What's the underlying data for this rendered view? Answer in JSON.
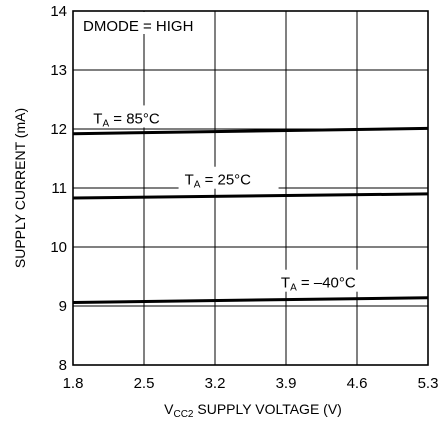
{
  "chart_data": {
    "type": "line",
    "title": "",
    "xlabel_main": "V",
    "xlabel_sub": "CC2",
    "xlabel_rest": " SUPPLY VOLTAGE (V)",
    "ylabel": "SUPPLY CURRENT (mA)",
    "xlim": [
      1.8,
      5.3
    ],
    "ylim": [
      8,
      14
    ],
    "x_ticks": [
      1.8,
      2.5,
      3.2,
      3.9,
      4.6,
      5.3
    ],
    "x_tick_labels": [
      "1.8",
      "2.5",
      "3.2",
      "3.9",
      "4.6",
      "5.3"
    ],
    "y_ticks": [
      8,
      9,
      10,
      11,
      12,
      13,
      14
    ],
    "y_tick_labels": [
      "8",
      "9",
      "10",
      "11",
      "12",
      "13",
      "14"
    ],
    "grid": true,
    "condition_label": "DMODE = HIGH",
    "series": [
      {
        "name": "85°C",
        "label_main": "T",
        "label_sub": "A",
        "label_rest": " = 85°C",
        "x": [
          1.8,
          5.3
        ],
        "y": [
          11.92,
          12.01
        ]
      },
      {
        "name": "25°C",
        "label_main": "T",
        "label_sub": "A",
        "label_rest": " = 25°C",
        "x": [
          1.8,
          5.3
        ],
        "y": [
          10.83,
          10.9
        ]
      },
      {
        "name": "–40°C",
        "label_main": "T",
        "label_sub": "A",
        "label_rest": " = –40°C",
        "x": [
          1.8,
          5.3
        ],
        "y": [
          9.06,
          9.14
        ]
      }
    ]
  }
}
